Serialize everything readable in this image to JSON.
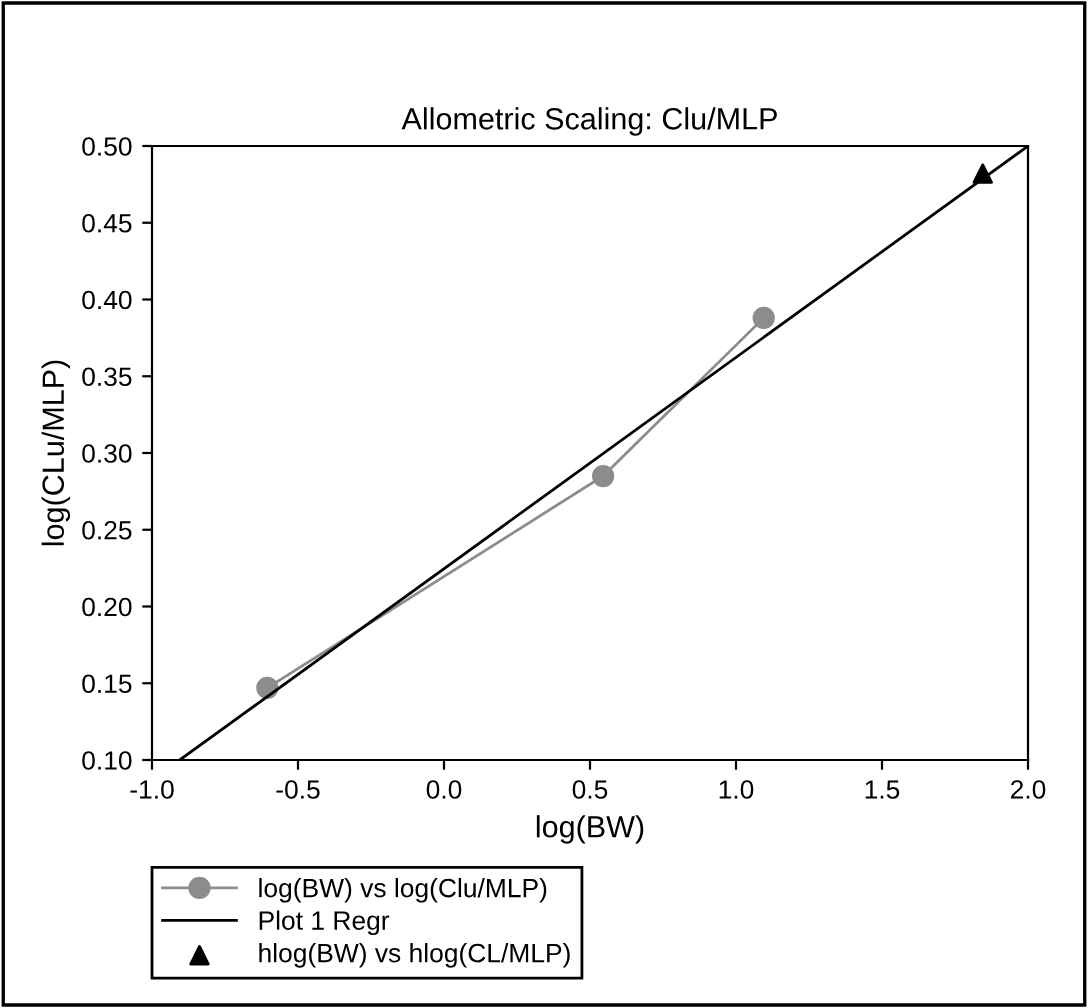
{
  "chart_data": {
    "type": "line",
    "title": "Allometric Scaling: Clu/MLP",
    "xlabel": "log(BW)",
    "ylabel": "log(CLu/MLP)",
    "xlim": [
      -1.0,
      2.0
    ],
    "xticks": [
      {
        "value": -1.0,
        "label": "-1.0"
      },
      {
        "value": -0.5,
        "label": "-0.5"
      },
      {
        "value": 0.0,
        "label": "0.0"
      },
      {
        "value": 0.5,
        "label": "0.5"
      },
      {
        "value": 1.0,
        "label": "1.0"
      },
      {
        "value": 1.5,
        "label": "1.5"
      },
      {
        "value": 2.0,
        "label": "2.0"
      }
    ],
    "ylim": [
      0.1,
      0.5
    ],
    "yticks": [
      {
        "value": 0.1,
        "label": "0.10"
      },
      {
        "value": 0.15,
        "label": "0.15"
      },
      {
        "value": 0.2,
        "label": "0.20"
      },
      {
        "value": 0.25,
        "label": "0.25"
      },
      {
        "value": 0.3,
        "label": "0.30"
      },
      {
        "value": 0.35,
        "label": "0.35"
      },
      {
        "value": 0.4,
        "label": "0.40"
      },
      {
        "value": 0.45,
        "label": "0.45"
      },
      {
        "value": 0.5,
        "label": "0.50"
      }
    ],
    "grid": false,
    "legend": "bottom left",
    "series": [
      {
        "name": "log(BW) vs log(Clu/MLP)",
        "marker": "circle",
        "color": "#8c8c8c",
        "x": [
          -0.605,
          0.545,
          1.095
        ],
        "values": [
          0.147,
          0.285,
          0.388
        ]
      },
      {
        "name": "Plot 1 Regr",
        "marker": "none",
        "color": "#000000",
        "x": [
          -0.905,
          2.0
        ],
        "values": [
          0.1,
          0.5
        ]
      },
      {
        "name": "hlog(BW) vs hlog(CL/MLP)",
        "type": "scatter",
        "marker": "triangle",
        "color": "#000000",
        "x": [
          1.845
        ],
        "values": [
          0.482
        ]
      }
    ]
  }
}
